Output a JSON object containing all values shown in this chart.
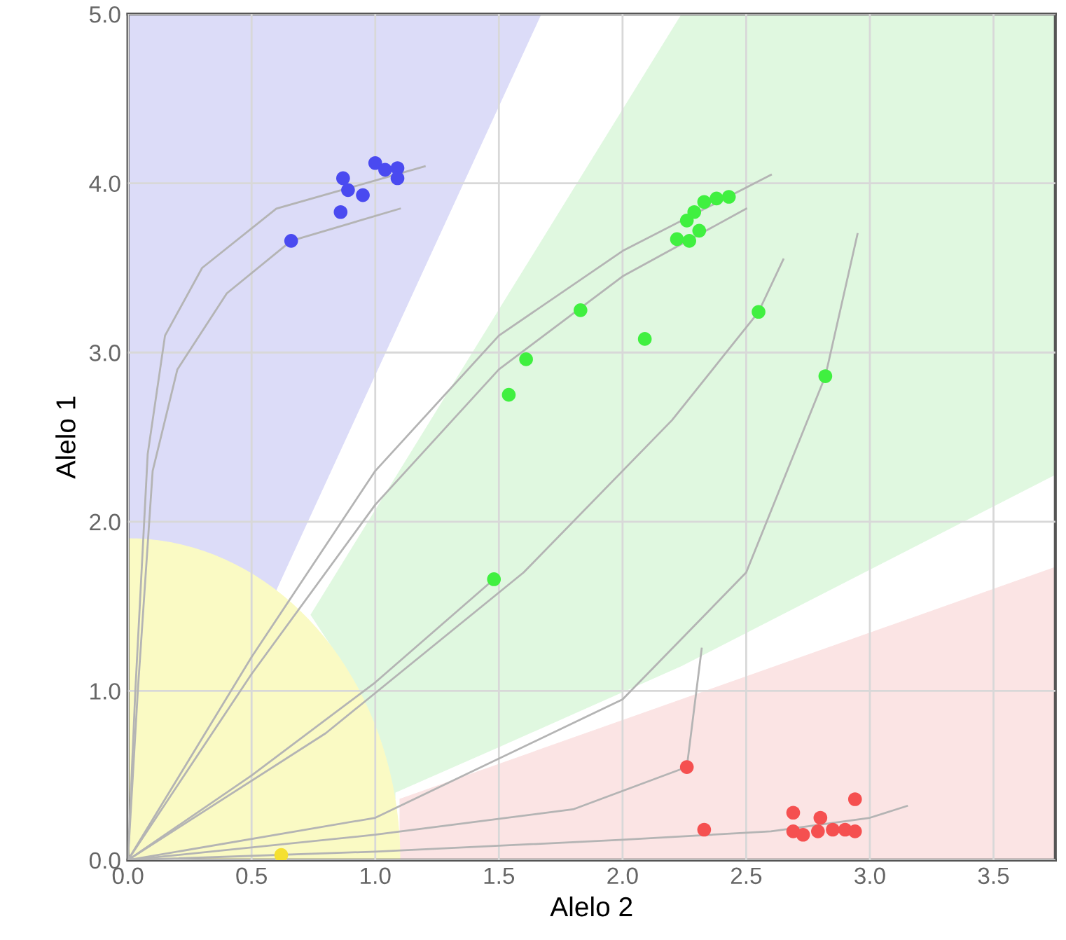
{
  "chart_data": {
    "type": "scatter",
    "xlabel": "Alelo 2",
    "ylabel": "Alelo 1",
    "xlim": [
      0,
      3.75
    ],
    "ylim": [
      0,
      5
    ],
    "xticks": [
      {
        "value": 0,
        "label": "0.0"
      },
      {
        "value": 0.5,
        "label": "0.5"
      },
      {
        "value": 1,
        "label": "1.0"
      },
      {
        "value": 1.5,
        "label": "1.5"
      },
      {
        "value": 2,
        "label": "2.0"
      },
      {
        "value": 2.5,
        "label": "2.5"
      },
      {
        "value": 3,
        "label": "3.0"
      },
      {
        "value": 3.5,
        "label": "3.5"
      }
    ],
    "yticks": [
      {
        "value": 0,
        "label": "0.0"
      },
      {
        "value": 1,
        "label": "1.0"
      },
      {
        "value": 2,
        "label": "2.0"
      },
      {
        "value": 3,
        "label": "3.0"
      },
      {
        "value": 4,
        "label": "4.0"
      },
      {
        "value": 5,
        "label": "5.0"
      }
    ],
    "grid": true,
    "legend": false,
    "series": [
      {
        "type": "line",
        "marker": "none",
        "color": "#b4b4b4",
        "x": [
          0,
          0.03,
          0.08,
          0.15,
          0.3,
          0.6,
          1.2
        ],
        "values": [
          0,
          1.0,
          2.4,
          3.1,
          3.5,
          3.85,
          4.1
        ]
      },
      {
        "type": "line",
        "marker": "none",
        "color": "#b4b4b4",
        "x": [
          0,
          0.04,
          0.1,
          0.2,
          0.4,
          0.66,
          1.1
        ],
        "values": [
          0,
          1.0,
          2.3,
          2.9,
          3.35,
          3.66,
          3.85
        ]
      },
      {
        "type": "line",
        "marker": "none",
        "color": "#b4b4b4",
        "x": [
          0,
          0.5,
          1.0,
          1.5,
          2.0,
          2.6
        ],
        "values": [
          0,
          1.2,
          2.3,
          3.1,
          3.6,
          4.05
        ]
      },
      {
        "type": "line",
        "marker": "none",
        "color": "#b4b4b4",
        "x": [
          0,
          0.5,
          1.0,
          1.5,
          2.0,
          2.5
        ],
        "values": [
          0,
          1.1,
          2.1,
          2.9,
          3.45,
          3.85
        ]
      },
      {
        "type": "line",
        "marker": "none",
        "color": "#b4b4b4",
        "x": [
          0,
          0.5,
          1.0,
          1.48
        ],
        "values": [
          0,
          0.5,
          1.05,
          1.66
        ]
      },
      {
        "type": "line",
        "marker": "none",
        "color": "#b4b4b4",
        "x": [
          0,
          1.0,
          2.0,
          2.5,
          2.82,
          2.95
        ],
        "values": [
          0,
          0.25,
          0.95,
          1.7,
          2.86,
          3.7
        ]
      },
      {
        "type": "line",
        "marker": "none",
        "color": "#b4b4b4",
        "x": [
          0,
          0.8,
          1.6,
          2.2,
          2.55,
          2.65
        ],
        "values": [
          0,
          0.75,
          1.7,
          2.6,
          3.24,
          3.55
        ]
      },
      {
        "type": "line",
        "marker": "none",
        "color": "#b4b4b4",
        "x": [
          0,
          1.0,
          2.0,
          2.6,
          3.0,
          3.15
        ],
        "values": [
          0,
          0.05,
          0.12,
          0.17,
          0.25,
          0.32
        ]
      },
      {
        "type": "line",
        "marker": "none",
        "color": "#b4b4b4",
        "x": [
          0,
          1.0,
          1.8,
          2.26,
          2.32
        ],
        "values": [
          0,
          0.15,
          0.3,
          0.55,
          1.25
        ]
      },
      {
        "marker": "circle",
        "color": "#4a4af0",
        "x": [
          0.66,
          0.86,
          0.87,
          0.89,
          0.95,
          1.0,
          1.04,
          1.09,
          1.09
        ],
        "values": [
          3.66,
          3.83,
          4.03,
          3.96,
          3.93,
          4.12,
          4.08,
          4.09,
          4.03
        ]
      },
      {
        "marker": "circle",
        "color": "#40f040",
        "x": [
          2.22,
          2.27,
          2.26,
          2.31,
          2.29,
          2.33,
          2.38,
          2.43,
          1.83,
          1.61,
          1.54,
          2.09,
          2.55,
          2.82,
          1.48
        ],
        "values": [
          3.67,
          3.66,
          3.78,
          3.72,
          3.83,
          3.89,
          3.91,
          3.92,
          3.25,
          2.96,
          2.75,
          3.08,
          3.24,
          2.86,
          1.66
        ]
      },
      {
        "marker": "circle",
        "color": "#f55050",
        "x": [
          2.26,
          2.33,
          2.94,
          2.69,
          2.8,
          2.69,
          2.73,
          2.79,
          2.85,
          2.9,
          2.94
        ],
        "values": [
          0.55,
          0.18,
          0.36,
          0.28,
          0.25,
          0.17,
          0.15,
          0.17,
          0.18,
          0.18,
          0.17
        ]
      },
      {
        "marker": "circle",
        "color": "#f5e030",
        "x": [
          0.62
        ],
        "values": [
          0.03
        ]
      }
    ]
  }
}
